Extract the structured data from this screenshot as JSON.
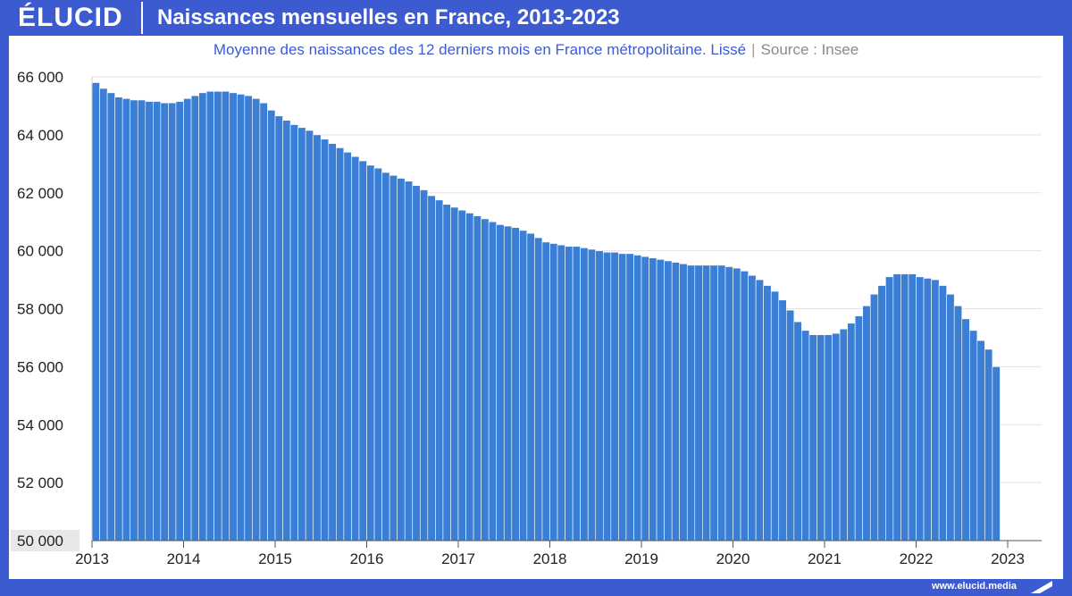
{
  "brand": {
    "logo": "ÉLUCID",
    "url": "www.elucid.media"
  },
  "header": {
    "title": "Naissances mensuelles en France, 2013-2023"
  },
  "subtitle": {
    "text": "Moyenne des naissances des 12 derniers mois en France métropolitaine. Lissé",
    "source": "Source : Insee"
  },
  "colors": {
    "brand_blue": "#3d5bd0",
    "bar": "#3a7fd5",
    "bar_edge": "#ffffff",
    "grid": "#e3e3e3"
  },
  "chart_data": {
    "type": "bar",
    "title": "Naissances mensuelles en France, 2013-2023",
    "xlabel": "",
    "ylabel": "",
    "ylim": [
      50000,
      66000
    ],
    "yticks": [
      "50 000",
      "52 000",
      "54 000",
      "56 000",
      "58 000",
      "60 000",
      "62 000",
      "64 000",
      "66 000"
    ],
    "ytick_values": [
      50000,
      52000,
      54000,
      56000,
      58000,
      60000,
      62000,
      64000,
      66000
    ],
    "xticks": [
      "2013",
      "2014",
      "2015",
      "2016",
      "2017",
      "2018",
      "2019",
      "2020",
      "2021",
      "2022",
      "2023"
    ],
    "grid": true,
    "frequency": "monthly",
    "start": "2013-01",
    "values": [
      65800,
      65600,
      65450,
      65300,
      65250,
      65200,
      65200,
      65150,
      65150,
      65100,
      65100,
      65150,
      65250,
      65350,
      65450,
      65500,
      65500,
      65500,
      65450,
      65400,
      65350,
      65250,
      65100,
      64850,
      64650,
      64500,
      64350,
      64250,
      64150,
      64000,
      63850,
      63700,
      63550,
      63400,
      63250,
      63100,
      62950,
      62850,
      62700,
      62600,
      62500,
      62400,
      62250,
      62100,
      61900,
      61750,
      61600,
      61500,
      61400,
      61300,
      61200,
      61100,
      61000,
      60900,
      60850,
      60800,
      60700,
      60600,
      60450,
      60300,
      60250,
      60200,
      60150,
      60150,
      60100,
      60050,
      60000,
      59950,
      59950,
      59900,
      59900,
      59850,
      59800,
      59750,
      59700,
      59650,
      59600,
      59550,
      59500,
      59500,
      59500,
      59500,
      59500,
      59450,
      59400,
      59300,
      59150,
      59000,
      58800,
      58600,
      58300,
      57950,
      57550,
      57250,
      57100,
      57100,
      57100,
      57150,
      57300,
      57500,
      57750,
      58100,
      58500,
      58800,
      59100,
      59200,
      59200,
      59200,
      59100,
      59050,
      59000,
      58800,
      58500,
      58100,
      57650,
      57250,
      56900,
      56600,
      56000
    ]
  }
}
